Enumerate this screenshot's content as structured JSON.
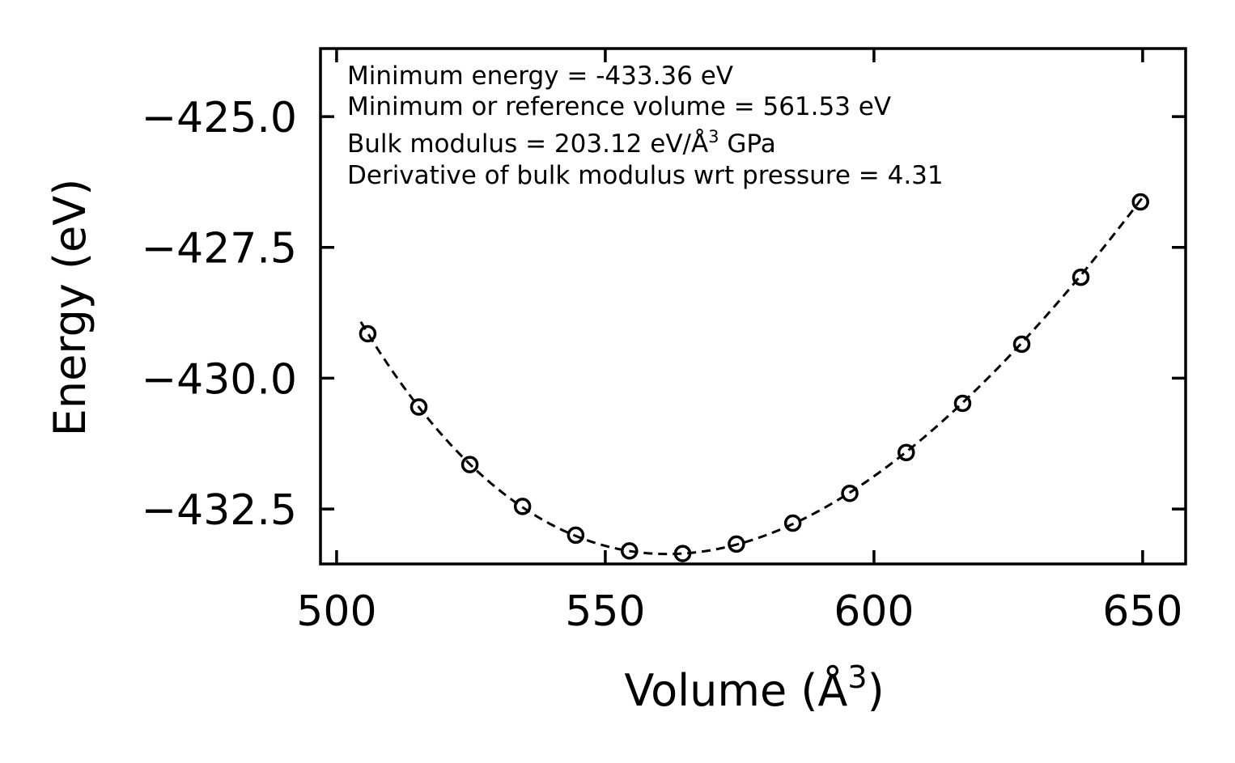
{
  "chart_data": {
    "type": "scatter",
    "title": "",
    "xlabel": "Volume (Å",
    "xlabel_sup": "3",
    "xlabel_suffix": ")",
    "ylabel": "Energy (eV)",
    "xlim": [
      497,
      658
    ],
    "ylim": [
      -433.55,
      -423.7
    ],
    "xticks": [
      500,
      550,
      600,
      650
    ],
    "xtick_labels": [
      "500",
      "550",
      "600",
      "650"
    ],
    "yticks": [
      -425.0,
      -427.5,
      -430.0,
      -432.5
    ],
    "ytick_labels": [
      "−425.0",
      "−427.5",
      "−430.0",
      "−432.5"
    ],
    "series": [
      {
        "name": "data",
        "style": "open-circle",
        "x": [
          505.8,
          515.3,
          524.8,
          534.6,
          544.5,
          554.5,
          564.4,
          574.4,
          584.9,
          595.5,
          606.0,
          616.5,
          627.5,
          638.5,
          649.6
        ],
        "y": [
          -429.15,
          -430.55,
          -431.65,
          -432.45,
          -433.0,
          -433.3,
          -433.35,
          -433.17,
          -432.77,
          -432.2,
          -431.42,
          -430.48,
          -429.35,
          -428.07,
          -426.63
        ]
      }
    ],
    "fit": {
      "name": "Birch-Murnaghan fit",
      "style": "dashed",
      "e0": -433.36,
      "v0": 561.53,
      "b0_gpa": 203.12,
      "bp": 4.31,
      "x_range": [
        504.5,
        650
      ]
    },
    "annotations": [
      "Minimum energy = -433.36 eV",
      "Minimum or reference volume = 561.53 eV",
      "Bulk modulus = 203.12 eV/Å",
      "3",
      " GPa",
      "Derivative of bulk modulus wrt pressure = 4.31"
    ]
  }
}
